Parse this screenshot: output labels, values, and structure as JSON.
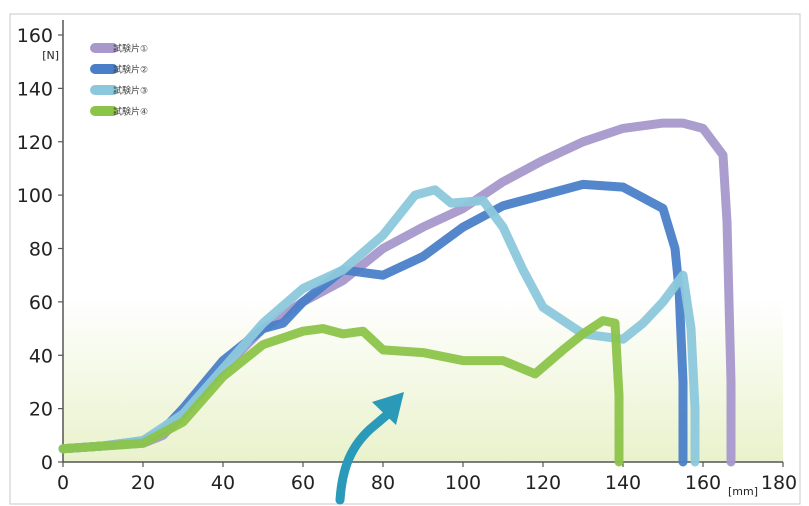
{
  "chart_data": {
    "type": "line",
    "title": "",
    "xlabel": "[mm]",
    "ylabel": "[N]",
    "xlim": [
      0,
      180
    ],
    "ylim": [
      0,
      160
    ],
    "x_ticks": [
      0,
      20,
      40,
      60,
      80,
      100,
      120,
      140,
      160,
      180
    ],
    "y_ticks": [
      0,
      20,
      40,
      60,
      80,
      100,
      120,
      140,
      160
    ],
    "grid": false,
    "legend_position": "top-left",
    "background_gradient": [
      "#ffffff",
      "#e9f2cc"
    ],
    "series": [
      {
        "name": "試験片①",
        "color": "#a898cc",
        "x": [
          0,
          10,
          20,
          25,
          30,
          40,
          50,
          60,
          70,
          80,
          90,
          100,
          110,
          120,
          130,
          140,
          150,
          155,
          160,
          165,
          166,
          167,
          167
        ],
        "y": [
          5,
          6,
          7,
          10,
          18,
          35,
          50,
          60,
          68,
          80,
          88,
          95,
          105,
          113,
          120,
          125,
          127,
          127,
          125,
          115,
          90,
          30,
          0
        ]
      },
      {
        "name": "試験片②",
        "color": "#4a7fc8",
        "x": [
          0,
          10,
          20,
          25,
          30,
          40,
          50,
          55,
          60,
          70,
          80,
          90,
          100,
          110,
          120,
          130,
          140,
          150,
          153,
          154,
          155,
          155
        ],
        "y": [
          5,
          6,
          8,
          12,
          20,
          38,
          50,
          52,
          60,
          72,
          70,
          77,
          88,
          96,
          100,
          104,
          103,
          95,
          80,
          65,
          30,
          0
        ]
      },
      {
        "name": "試験片③",
        "color": "#8cc8dc",
        "x": [
          0,
          10,
          20,
          30,
          40,
          50,
          60,
          70,
          80,
          88,
          93,
          97,
          105,
          110,
          115,
          120,
          130,
          140,
          145,
          150,
          155,
          157,
          158,
          158
        ],
        "y": [
          5,
          6,
          8,
          18,
          35,
          52,
          65,
          72,
          85,
          100,
          102,
          97,
          98,
          88,
          72,
          58,
          48,
          46,
          52,
          60,
          70,
          50,
          20,
          0
        ]
      },
      {
        "name": "試験片④",
        "color": "#8cc44a",
        "x": [
          0,
          10,
          20,
          30,
          40,
          50,
          60,
          65,
          70,
          75,
          80,
          90,
          100,
          110,
          118,
          125,
          130,
          135,
          138,
          139,
          139
        ],
        "y": [
          5,
          6,
          7,
          15,
          32,
          44,
          49,
          50,
          48,
          49,
          42,
          41,
          38,
          38,
          33,
          42,
          48,
          53,
          52,
          25,
          0
        ]
      }
    ]
  }
}
